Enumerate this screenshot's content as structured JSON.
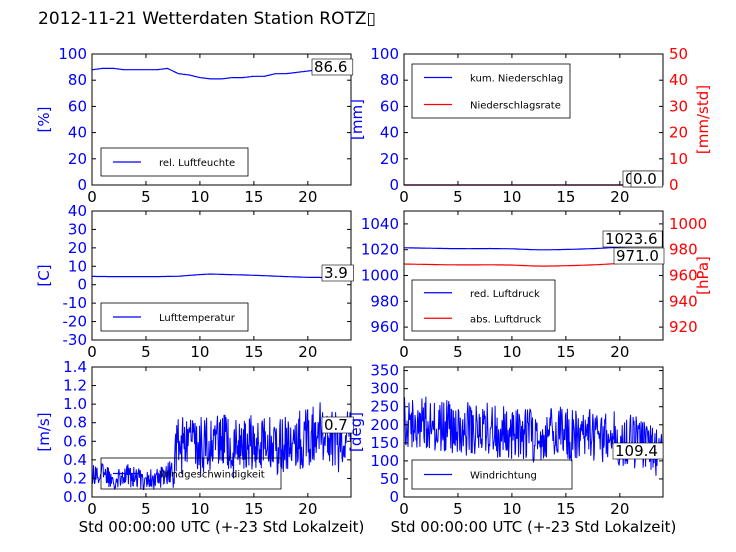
{
  "figure": {
    "title": "2012-11-21 Wetterdaten Station ROTZ▯",
    "xlabel": "Std 00:00:00 UTC (+-23 Std Lokalzeit)"
  },
  "colors": {
    "primary": "#0000ff",
    "secondary": "#ff0000",
    "axis": "#000000"
  },
  "chart_data": [
    {
      "id": "humidity",
      "type": "line",
      "xlim": [
        0,
        24
      ],
      "ylim": [
        0,
        100
      ],
      "xticks": [
        0,
        5,
        10,
        15,
        20
      ],
      "yticks": [
        0,
        20,
        40,
        60,
        80,
        100
      ],
      "ylabel": "[%]",
      "legend": [
        "rel. Luftfeuchte"
      ],
      "legend_loc": "lower-left",
      "series": [
        {
          "name": "rel. Luftfeuchte",
          "axis": "left",
          "color": "#0000ff",
          "style": "smooth",
          "x": [
            0,
            1,
            2,
            3,
            4,
            5,
            6,
            7,
            8,
            9,
            10,
            11,
            12,
            13,
            14,
            15,
            16,
            17,
            18,
            19,
            20,
            21,
            22,
            23,
            24
          ],
          "y": [
            88,
            89,
            89,
            88,
            88,
            88,
            88,
            89,
            85,
            84,
            82,
            81,
            81,
            82,
            82,
            83,
            83,
            85,
            85,
            86,
            87,
            88,
            88,
            87,
            87
          ]
        }
      ],
      "annotations": [
        {
          "text": "86.6"
        }
      ]
    },
    {
      "id": "precipitation",
      "type": "line",
      "xlim": [
        0,
        24
      ],
      "ylim": [
        0,
        100
      ],
      "xticks": [
        0,
        5,
        10,
        15,
        20
      ],
      "yticks": [
        0,
        20,
        40,
        60,
        80,
        100
      ],
      "ylabel": "[mm]",
      "ylim_right": [
        0,
        50
      ],
      "yticks_right": [
        0,
        10,
        20,
        30,
        40,
        50
      ],
      "ylabel_right": "[mm/std]",
      "legend": [
        "kum. Niederschlag",
        "Niederschlagsrate"
      ],
      "legend_loc": "upper-left",
      "series": [
        {
          "name": "kum. Niederschlag",
          "axis": "left",
          "color": "#0000ff",
          "x": [
            0,
            24
          ],
          "y": [
            0,
            0
          ]
        },
        {
          "name": "Niederschlagsrate",
          "axis": "right",
          "color": "#ff0000",
          "x": [
            0,
            24
          ],
          "y": [
            0,
            0
          ]
        }
      ],
      "annotations": [
        {
          "text": "0.0"
        },
        {
          "text": "0.0"
        }
      ]
    },
    {
      "id": "temperature",
      "type": "line",
      "xlim": [
        0,
        24
      ],
      "ylim": [
        -30,
        40
      ],
      "xticks": [
        0,
        5,
        10,
        15,
        20
      ],
      "yticks": [
        -30,
        -20,
        -10,
        0,
        10,
        20,
        30,
        40
      ],
      "ylabel": "[C]",
      "legend": [
        "Lufttemperatur"
      ],
      "legend_loc": "lower-left",
      "series": [
        {
          "name": "Lufttemperatur",
          "axis": "left",
          "color": "#0000ff",
          "style": "smooth",
          "x": [
            0,
            2,
            4,
            6,
            8,
            10,
            11,
            12,
            14,
            16,
            18,
            20,
            22,
            24
          ],
          "y": [
            4.5,
            4.4,
            4.4,
            4.4,
            4.6,
            5.5,
            5.8,
            5.6,
            5.3,
            4.9,
            4.4,
            4.0,
            3.9,
            3.9
          ]
        }
      ],
      "annotations": [
        {
          "text": "3.9"
        }
      ]
    },
    {
      "id": "pressure",
      "type": "line",
      "xlim": [
        0,
        24
      ],
      "ylim": [
        950,
        1050
      ],
      "xticks": [
        0,
        5,
        10,
        15,
        20
      ],
      "yticks": [
        960,
        980,
        1000,
        1020,
        1040
      ],
      "ylim_right": [
        910,
        1010
      ],
      "yticks_right": [
        920,
        940,
        960,
        980,
        1000
      ],
      "ylabel_right": "[hPa]",
      "legend": [
        "red. Luftdruck",
        "abs. Luftdruck"
      ],
      "legend_loc": "lower-left",
      "series": [
        {
          "name": "red. Luftdruck",
          "axis": "left",
          "color": "#0000ff",
          "style": "smooth",
          "x": [
            0,
            2,
            4,
            6,
            8,
            10,
            12,
            13,
            14,
            16,
            18,
            20,
            22,
            24
          ],
          "y": [
            1021.5,
            1021.2,
            1020.9,
            1020.8,
            1020.9,
            1020.7,
            1020.0,
            1019.9,
            1020.0,
            1020.4,
            1021.0,
            1022.0,
            1023.0,
            1023.6
          ]
        },
        {
          "name": "abs. Luftdruck",
          "axis": "right",
          "color": "#ff0000",
          "style": "smooth",
          "x": [
            0,
            2,
            4,
            6,
            8,
            10,
            12,
            13,
            14,
            16,
            18,
            20,
            22,
            24
          ],
          "y": [
            968.9,
            968.6,
            968.3,
            968.2,
            968.3,
            968.1,
            967.4,
            967.3,
            967.4,
            967.8,
            968.4,
            969.4,
            970.4,
            971.0
          ]
        }
      ],
      "annotations": [
        {
          "text": "1023.6"
        },
        {
          "text": "971.0"
        }
      ]
    },
    {
      "id": "windspeed",
      "type": "line",
      "xlim": [
        0,
        24
      ],
      "ylim": [
        0,
        1.4
      ],
      "xticks": [
        0,
        5,
        10,
        15,
        20
      ],
      "yticks": [
        0.0,
        0.2,
        0.4,
        0.6,
        0.8,
        1.0,
        1.2,
        1.4
      ],
      "ylabel": "[m/s]",
      "xlabel": "Std 00:00:00 UTC (+-23 Std Lokalzeit)",
      "legend": [
        "Windgeschwindigkeit"
      ],
      "legend_loc": "lower-left",
      "series": [
        {
          "name": "Windgeschwindigkeit",
          "axis": "left",
          "color": "#0000ff",
          "style": "noisy",
          "x": [
            0,
            1,
            2,
            3,
            4,
            5,
            6,
            7,
            7.5,
            8,
            9,
            10,
            11,
            12,
            13,
            14,
            15,
            16,
            17,
            18,
            19,
            20,
            21,
            22,
            23,
            24
          ],
          "y": [
            0.25,
            0.25,
            0.2,
            0.25,
            0.2,
            0.2,
            0.2,
            0.25,
            0.3,
            0.55,
            0.6,
            0.55,
            0.6,
            0.6,
            0.5,
            0.55,
            0.6,
            0.6,
            0.55,
            0.55,
            0.6,
            0.65,
            0.7,
            0.7,
            0.55,
            0.7
          ]
        }
      ],
      "annotations": [
        {
          "text": "0.7"
        }
      ]
    },
    {
      "id": "winddirection",
      "type": "line",
      "xlim": [
        0,
        24
      ],
      "ylim": [
        0,
        360
      ],
      "xticks": [
        0,
        5,
        10,
        15,
        20
      ],
      "yticks": [
        0,
        50,
        100,
        150,
        200,
        250,
        300,
        350
      ],
      "ylabel": "[deg]",
      "xlabel": "Std 00:00:00 UTC (+-23 Std Lokalzeit)",
      "legend": [
        "Windrichtung"
      ],
      "legend_loc": "lower-left",
      "series": [
        {
          "name": "Windrichtung",
          "axis": "left",
          "color": "#0000ff",
          "style": "noisy",
          "x": [
            0,
            1,
            2,
            3,
            4,
            5,
            6,
            7,
            8,
            9,
            10,
            11,
            12,
            13,
            14,
            15,
            16,
            17,
            18,
            19,
            20,
            21,
            22,
            23,
            24
          ],
          "y": [
            220,
            200,
            210,
            190,
            195,
            180,
            190,
            185,
            190,
            180,
            175,
            180,
            170,
            180,
            185,
            175,
            170,
            175,
            165,
            170,
            160,
            155,
            150,
            140,
            109.4
          ]
        }
      ],
      "annotations": [
        {
          "text": "109.4"
        }
      ]
    }
  ]
}
